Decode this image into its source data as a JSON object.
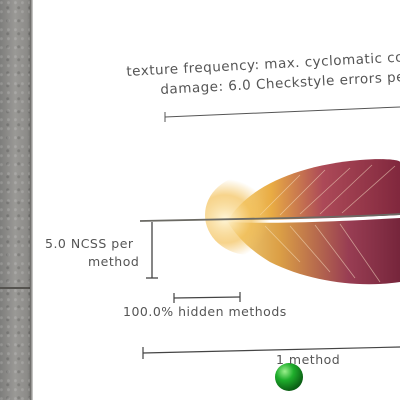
{
  "caption": {
    "line1": "texture frequency: max. cyclomatic co",
    "line2": "damage: 6.0 Checkstyle errors pe"
  },
  "scale_labels": {
    "ncss_line1": "5.0 NCSS per",
    "ncss_line2": "method",
    "hidden_methods": "100.0% hidden methods",
    "method": "1 method"
  },
  "colors": {
    "feather_dark": "#7a1c33",
    "feather_mid": "#a8404f",
    "feather_gold": "#e8a83a",
    "marker": "#1fae2c"
  }
}
